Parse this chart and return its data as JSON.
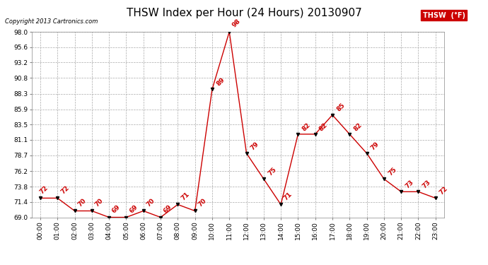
{
  "title": "THSW Index per Hour (24 Hours) 20130907",
  "copyright": "Copyright 2013 Cartronics.com",
  "legend_label": "THSW  (°F)",
  "hours": [
    "00:00",
    "01:00",
    "02:00",
    "03:00",
    "04:00",
    "05:00",
    "06:00",
    "07:00",
    "08:00",
    "09:00",
    "10:00",
    "11:00",
    "12:00",
    "13:00",
    "14:00",
    "15:00",
    "16:00",
    "17:00",
    "18:00",
    "19:00",
    "20:00",
    "21:00",
    "22:00",
    "23:00"
  ],
  "values": [
    72,
    72,
    70,
    70,
    69,
    69,
    70,
    69,
    71,
    70,
    89,
    98,
    79,
    75,
    71,
    82,
    82,
    85,
    82,
    79,
    75,
    73,
    73,
    72
  ],
  "line_color": "#cc0000",
  "marker_color": "#000000",
  "bg_color": "#ffffff",
  "grid_color": "#aaaaaa",
  "ylim_min": 69.0,
  "ylim_max": 98.0,
  "yticks": [
    69.0,
    71.4,
    73.8,
    76.2,
    78.7,
    81.1,
    83.5,
    85.9,
    88.3,
    90.8,
    93.2,
    95.6,
    98.0
  ],
  "ytick_labels": [
    "69.0",
    "71.4",
    "73.8",
    "76.2",
    "78.7",
    "81.1",
    "83.5",
    "85.9",
    "88.3",
    "90.8",
    "93.2",
    "95.6",
    "98.0"
  ],
  "title_fontsize": 11,
  "tick_fontsize": 6.5,
  "annotation_fontsize": 6.5,
  "legend_bg": "#cc0000",
  "legend_text_color": "#ffffff"
}
